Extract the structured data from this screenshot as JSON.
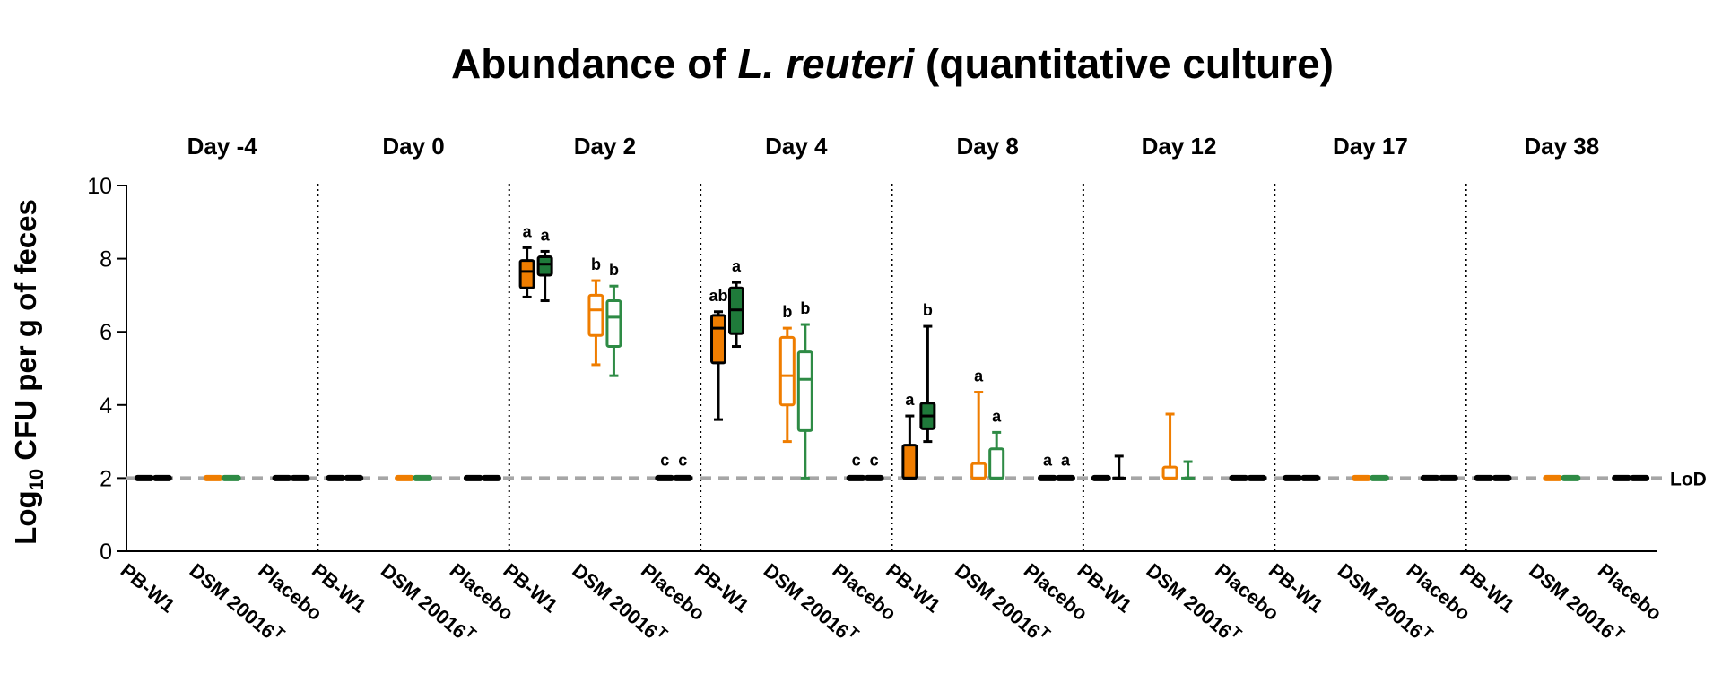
{
  "chart_data": {
    "type": "box",
    "title_prefix": "Abundance of ",
    "title_italic": "L. reuteri",
    "title_suffix": " (quantitative culture)",
    "ylabel_prefix": "Log",
    "ylabel_sub": "10",
    "ylabel_suffix": " CFU per g of feces",
    "ylim": [
      0,
      10
    ],
    "yticks": [
      "0",
      "2",
      "4",
      "6",
      "8",
      "10"
    ],
    "lod_value": 2,
    "lod_label": "LoD",
    "groups": [
      "PB-W1",
      "DSM 20016",
      "Placebo"
    ],
    "group_superscript": [
      "",
      "T",
      ""
    ],
    "colors": {
      "pbw1": "#ef7d00",
      "dsm": "#ef7d00",
      "dark_green": "#1f7a3a",
      "green": "#2e8b45",
      "black": "#000000",
      "lod_line": "#a6a6a6"
    },
    "days": [
      {
        "label": "Day -4",
        "boxes": [
          {
            "group": "PB-W1",
            "color": "black",
            "fill": "black",
            "min": 2,
            "q1": 2,
            "median": 2,
            "q3": 2,
            "max": 2
          },
          {
            "group": "PB-W1",
            "color": "black",
            "fill": "black",
            "min": 2,
            "q1": 2,
            "median": 2,
            "q3": 2,
            "max": 2
          },
          {
            "group": "DSM 20016",
            "color": "orange",
            "fill": "orange",
            "min": 2,
            "q1": 2,
            "median": 2,
            "q3": 2,
            "max": 2
          },
          {
            "group": "DSM 20016",
            "color": "green",
            "fill": "green",
            "min": 2,
            "q1": 2,
            "median": 2,
            "q3": 2,
            "max": 2
          },
          {
            "group": "Placebo",
            "color": "black",
            "fill": "black",
            "min": 2,
            "q1": 2,
            "median": 2,
            "q3": 2,
            "max": 2
          },
          {
            "group": "Placebo",
            "color": "black",
            "fill": "black",
            "min": 2,
            "q1": 2,
            "median": 2,
            "q3": 2,
            "max": 2
          }
        ]
      },
      {
        "label": "Day 0",
        "boxes": [
          {
            "group": "PB-W1",
            "color": "black",
            "fill": "black",
            "min": 2,
            "q1": 2,
            "median": 2,
            "q3": 2,
            "max": 2
          },
          {
            "group": "PB-W1",
            "color": "black",
            "fill": "black",
            "min": 2,
            "q1": 2,
            "median": 2,
            "q3": 2,
            "max": 2
          },
          {
            "group": "DSM 20016",
            "color": "orange",
            "fill": "orange",
            "min": 2,
            "q1": 2,
            "median": 2,
            "q3": 2,
            "max": 2
          },
          {
            "group": "DSM 20016",
            "color": "green",
            "fill": "green",
            "min": 2,
            "q1": 2,
            "median": 2,
            "q3": 2,
            "max": 2
          },
          {
            "group": "Placebo",
            "color": "black",
            "fill": "black",
            "min": 2,
            "q1": 2,
            "median": 2,
            "q3": 2,
            "max": 2
          },
          {
            "group": "Placebo",
            "color": "black",
            "fill": "black",
            "min": 2,
            "q1": 2,
            "median": 2,
            "q3": 2,
            "max": 2
          }
        ]
      },
      {
        "label": "Day 2",
        "boxes": [
          {
            "group": "PB-W1",
            "color": "black",
            "fill": "orange",
            "min": 6.95,
            "q1": 7.2,
            "median": 7.65,
            "q3": 7.95,
            "max": 8.3,
            "sig": "a"
          },
          {
            "group": "PB-W1",
            "color": "black",
            "fill": "darkgreen",
            "min": 6.85,
            "q1": 7.55,
            "median": 7.85,
            "q3": 8.05,
            "max": 8.2,
            "sig": "a"
          },
          {
            "group": "DSM 20016",
            "color": "orange",
            "fill": "white",
            "min": 5.1,
            "q1": 5.9,
            "median": 6.6,
            "q3": 7.0,
            "max": 7.4,
            "sig": "b"
          },
          {
            "group": "DSM 20016",
            "color": "green",
            "fill": "white",
            "min": 4.8,
            "q1": 5.6,
            "median": 6.4,
            "q3": 6.85,
            "max": 7.25,
            "sig": "b"
          },
          {
            "group": "Placebo",
            "color": "black",
            "fill": "black",
            "min": 2,
            "q1": 2,
            "median": 2,
            "q3": 2,
            "max": 2,
            "sig": "c"
          },
          {
            "group": "Placebo",
            "color": "black",
            "fill": "black",
            "min": 2,
            "q1": 2,
            "median": 2,
            "q3": 2,
            "max": 2,
            "sig": "c"
          }
        ]
      },
      {
        "label": "Day 4",
        "boxes": [
          {
            "group": "PB-W1",
            "color": "black",
            "fill": "orange",
            "min": 3.6,
            "q1": 5.15,
            "median": 6.1,
            "q3": 6.45,
            "max": 6.55,
            "sig": "ab"
          },
          {
            "group": "PB-W1",
            "color": "black",
            "fill": "darkgreen",
            "min": 5.6,
            "q1": 5.95,
            "median": 6.6,
            "q3": 7.2,
            "max": 7.35,
            "sig": "a"
          },
          {
            "group": "DSM 20016",
            "color": "orange",
            "fill": "white",
            "min": 3.0,
            "q1": 4.0,
            "median": 4.8,
            "q3": 5.85,
            "max": 6.1,
            "sig": "b"
          },
          {
            "group": "DSM 20016",
            "color": "green",
            "fill": "white",
            "min": 2.0,
            "q1": 3.3,
            "median": 4.7,
            "q3": 5.45,
            "max": 6.2,
            "sig": "b"
          },
          {
            "group": "Placebo",
            "color": "black",
            "fill": "black",
            "min": 2,
            "q1": 2,
            "median": 2,
            "q3": 2,
            "max": 2,
            "sig": "c"
          },
          {
            "group": "Placebo",
            "color": "black",
            "fill": "black",
            "min": 2,
            "q1": 2,
            "median": 2,
            "q3": 2,
            "max": 2,
            "sig": "c"
          }
        ]
      },
      {
        "label": "Day 8",
        "boxes": [
          {
            "group": "PB-W1",
            "color": "black",
            "fill": "orange",
            "min": 2.0,
            "q1": 2.0,
            "median": 2.0,
            "q3": 2.9,
            "max": 3.7,
            "sig": "a"
          },
          {
            "group": "PB-W1",
            "color": "black",
            "fill": "darkgreen",
            "min": 3.0,
            "q1": 3.35,
            "median": 3.7,
            "q3": 4.05,
            "max": 6.15,
            "sig": "b"
          },
          {
            "group": "DSM 20016",
            "color": "orange",
            "fill": "white",
            "min": 2.0,
            "q1": 2.0,
            "median": 2.0,
            "q3": 2.4,
            "max": 4.35,
            "sig": "a"
          },
          {
            "group": "DSM 20016",
            "color": "green",
            "fill": "white",
            "min": 2.0,
            "q1": 2.0,
            "median": 2.0,
            "q3": 2.8,
            "max": 3.25,
            "sig": "a"
          },
          {
            "group": "Placebo",
            "color": "black",
            "fill": "black",
            "min": 2,
            "q1": 2,
            "median": 2,
            "q3": 2,
            "max": 2,
            "sig": "a"
          },
          {
            "group": "Placebo",
            "color": "black",
            "fill": "black",
            "min": 2,
            "q1": 2,
            "median": 2,
            "q3": 2,
            "max": 2,
            "sig": "a"
          }
        ]
      },
      {
        "label": "Day 12",
        "boxes": [
          {
            "group": "PB-W1",
            "color": "black",
            "fill": "black",
            "min": 2,
            "q1": 2,
            "median": 2,
            "q3": 2,
            "max": 2
          },
          {
            "group": "PB-W1",
            "color": "black",
            "fill": "black",
            "min": 2.0,
            "q1": 2.0,
            "median": 2.0,
            "q3": 2.0,
            "max": 2.6
          },
          {
            "group": "DSM 20016",
            "color": "orange",
            "fill": "white",
            "min": 2.0,
            "q1": 2.0,
            "median": 2.0,
            "q3": 2.3,
            "max": 3.75
          },
          {
            "group": "DSM 20016",
            "color": "green",
            "fill": "green",
            "min": 2.0,
            "q1": 2.0,
            "median": 2.0,
            "q3": 2.0,
            "max": 2.45
          },
          {
            "group": "Placebo",
            "color": "black",
            "fill": "black",
            "min": 2,
            "q1": 2,
            "median": 2,
            "q3": 2,
            "max": 2
          },
          {
            "group": "Placebo",
            "color": "black",
            "fill": "black",
            "min": 2,
            "q1": 2,
            "median": 2,
            "q3": 2,
            "max": 2
          }
        ]
      },
      {
        "label": "Day 17",
        "boxes": [
          {
            "group": "PB-W1",
            "color": "black",
            "fill": "black",
            "min": 2,
            "q1": 2,
            "median": 2,
            "q3": 2,
            "max": 2
          },
          {
            "group": "PB-W1",
            "color": "black",
            "fill": "black",
            "min": 2,
            "q1": 2,
            "median": 2,
            "q3": 2,
            "max": 2
          },
          {
            "group": "DSM 20016",
            "color": "orange",
            "fill": "orange",
            "min": 2,
            "q1": 2,
            "median": 2,
            "q3": 2,
            "max": 2
          },
          {
            "group": "DSM 20016",
            "color": "green",
            "fill": "green",
            "min": 2,
            "q1": 2,
            "median": 2,
            "q3": 2,
            "max": 2
          },
          {
            "group": "Placebo",
            "color": "black",
            "fill": "black",
            "min": 2,
            "q1": 2,
            "median": 2,
            "q3": 2,
            "max": 2
          },
          {
            "group": "Placebo",
            "color": "black",
            "fill": "black",
            "min": 2,
            "q1": 2,
            "median": 2,
            "q3": 2,
            "max": 2
          }
        ]
      },
      {
        "label": "Day 38",
        "boxes": [
          {
            "group": "PB-W1",
            "color": "black",
            "fill": "black",
            "min": 2,
            "q1": 2,
            "median": 2,
            "q3": 2,
            "max": 2
          },
          {
            "group": "PB-W1",
            "color": "black",
            "fill": "black",
            "min": 2,
            "q1": 2,
            "median": 2,
            "q3": 2,
            "max": 2
          },
          {
            "group": "DSM 20016",
            "color": "orange",
            "fill": "orange",
            "min": 2,
            "q1": 2,
            "median": 2,
            "q3": 2,
            "max": 2
          },
          {
            "group": "DSM 20016",
            "color": "green",
            "fill": "green",
            "min": 2,
            "q1": 2,
            "median": 2,
            "q3": 2,
            "max": 2
          },
          {
            "group": "Placebo",
            "color": "black",
            "fill": "black",
            "min": 2,
            "q1": 2,
            "median": 2,
            "q3": 2,
            "max": 2
          },
          {
            "group": "Placebo",
            "color": "black",
            "fill": "black",
            "min": 2,
            "q1": 2,
            "median": 2,
            "q3": 2,
            "max": 2
          }
        ]
      }
    ]
  }
}
